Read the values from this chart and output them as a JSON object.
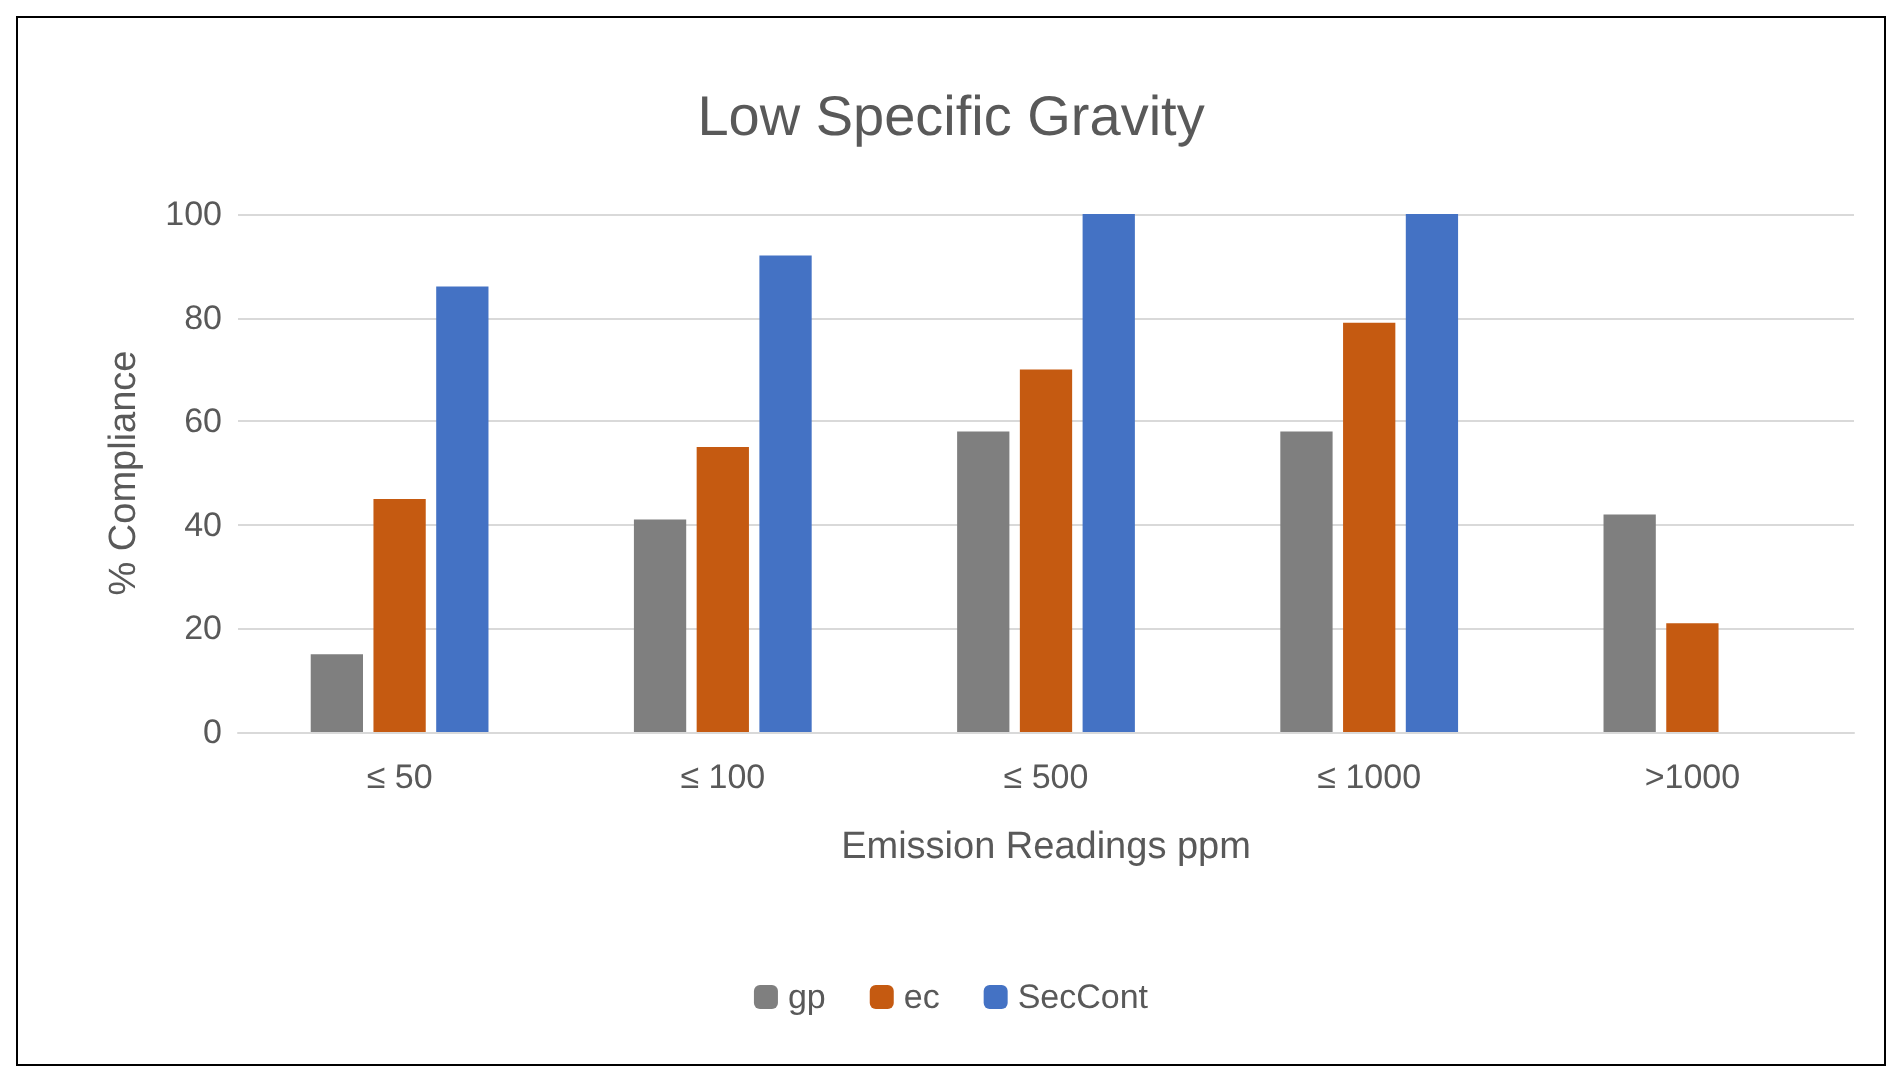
{
  "chart_data": {
    "type": "bar",
    "title": "Low Specific Gravity",
    "xlabel": "Emission Readings ppm",
    "ylabel": "% Compliance",
    "categories": [
      "≤ 50",
      "≤ 100",
      "≤ 500",
      "≤ 1000",
      ">1000"
    ],
    "series": [
      {
        "name": "gp",
        "color": "#7f7f7f",
        "values": [
          15,
          41,
          58,
          58,
          42
        ]
      },
      {
        "name": "ec",
        "color": "#c55a11",
        "values": [
          45,
          55,
          70,
          79,
          21
        ]
      },
      {
        "name": "SecCont",
        "color": "#4472c4",
        "values": [
          86,
          92,
          100,
          100,
          null
        ]
      }
    ],
    "ylim": [
      0,
      100
    ],
    "yticks": [
      0,
      20,
      40,
      60,
      80,
      100
    ],
    "grid": "y",
    "legend": "bottom"
  }
}
